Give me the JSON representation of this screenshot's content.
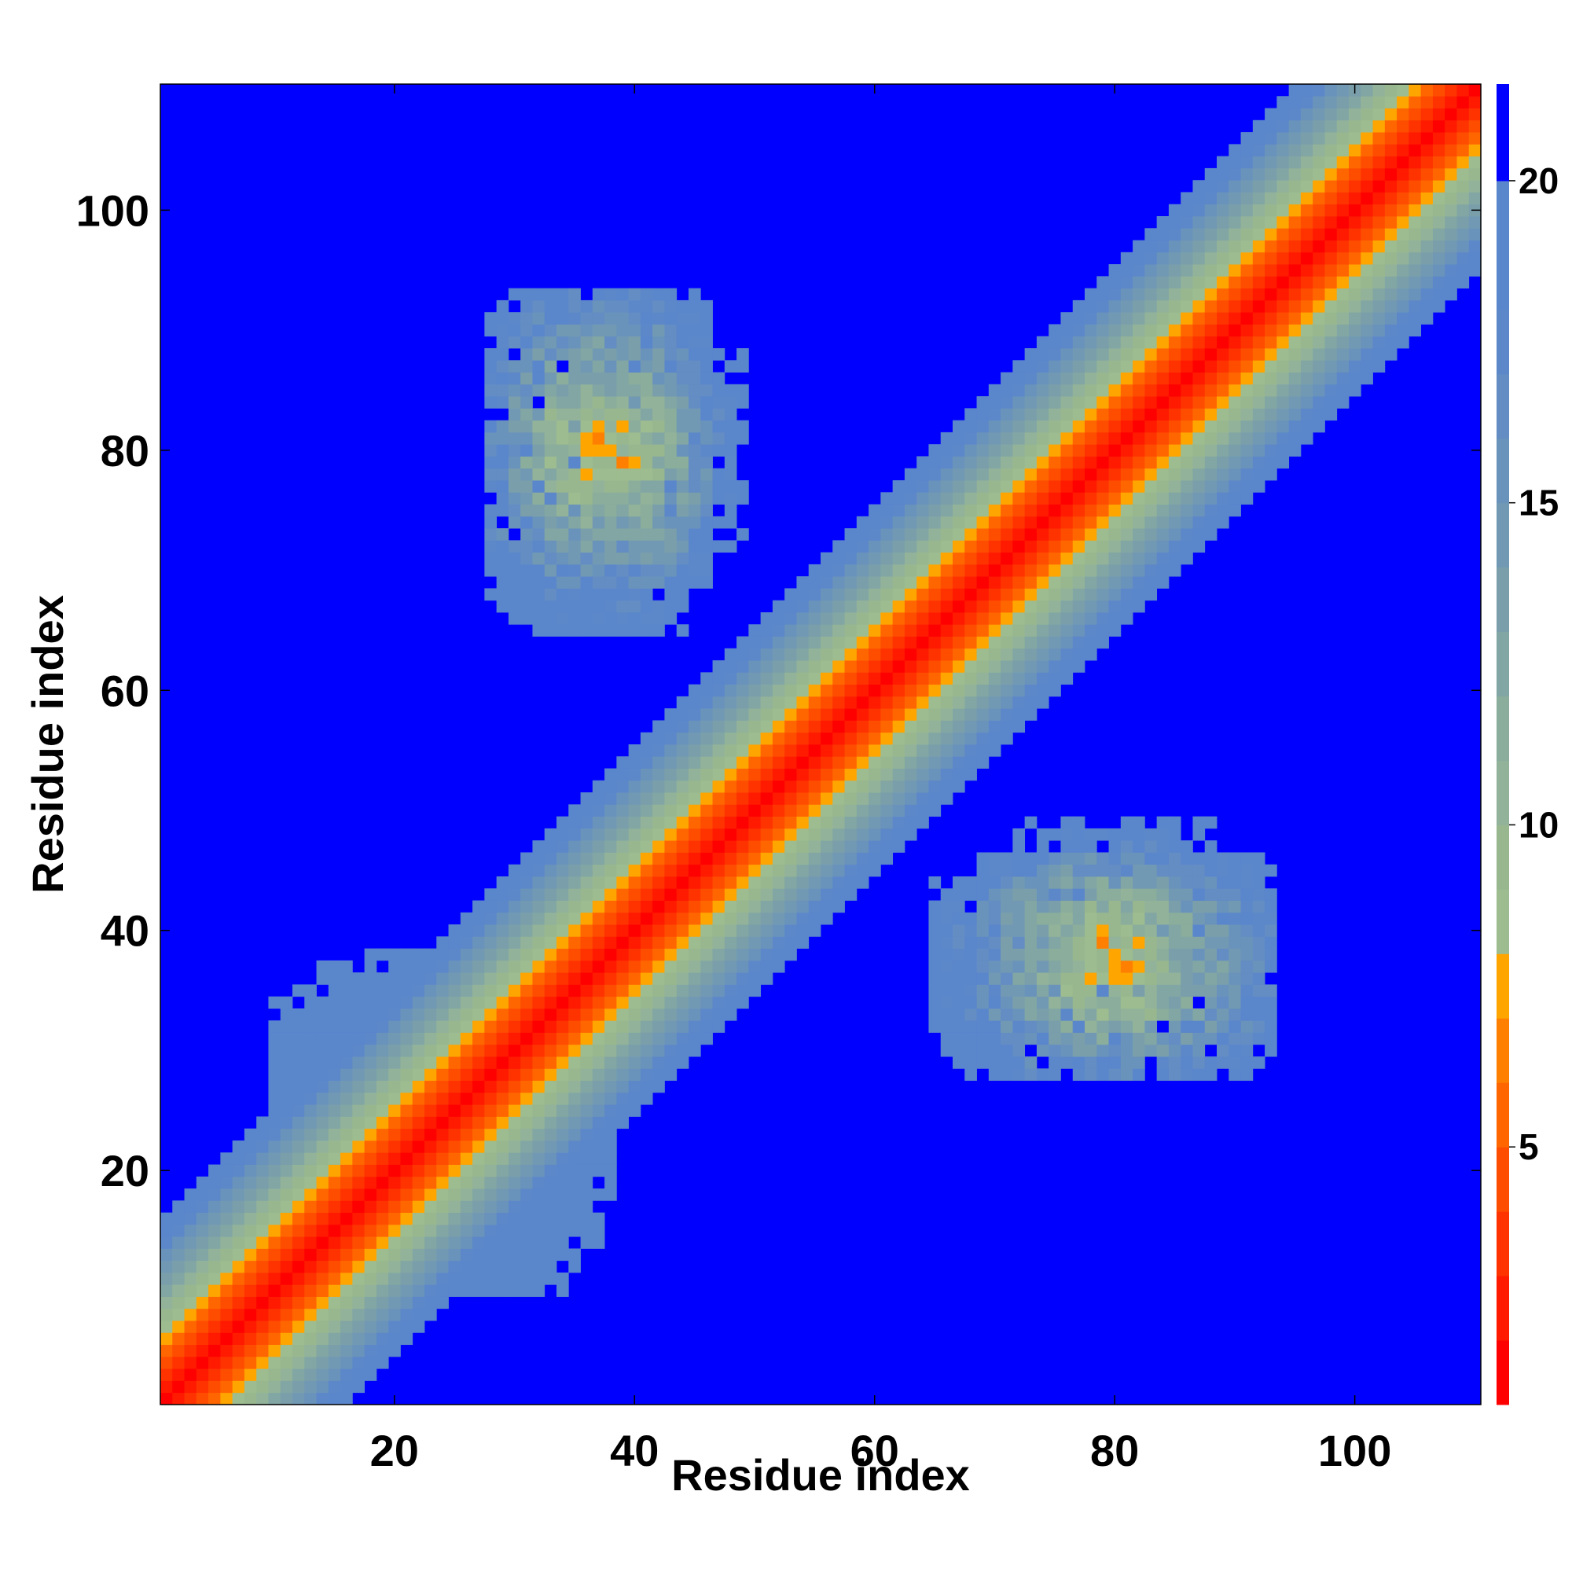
{
  "chart_data": {
    "type": "heatmap",
    "title": "",
    "xlabel": "Residue index",
    "ylabel": "Residue index",
    "n_residues": 110,
    "xlim": [
      0.5,
      110.5
    ],
    "ylim": [
      0.5,
      110.5
    ],
    "x_ticks": [
      20,
      40,
      60,
      80,
      100
    ],
    "y_ticks": [
      20,
      40,
      60,
      80,
      100
    ],
    "colorbar": {
      "range": [
        1,
        21.5
      ],
      "ticks": [
        5,
        10,
        15,
        20
      ],
      "levels": [
        {
          "max": 2,
          "color": "#ff0000"
        },
        {
          "max": 3,
          "color": "#ff1a00"
        },
        {
          "max": 4,
          "color": "#ff3300"
        },
        {
          "max": 5,
          "color": "#ff4d00"
        },
        {
          "max": 6,
          "color": "#ff6600"
        },
        {
          "max": 7,
          "color": "#ff8000"
        },
        {
          "max": 8,
          "color": "#ffa500"
        },
        {
          "max": 9,
          "color": "#9dbc8f"
        },
        {
          "max": 10,
          "color": "#98b78f"
        },
        {
          "max": 11,
          "color": "#92b39a"
        },
        {
          "max": 12,
          "color": "#8aad9c"
        },
        {
          "max": 13,
          "color": "#82a6a3"
        },
        {
          "max": 14,
          "color": "#7a9fab"
        },
        {
          "max": 15,
          "color": "#7299b3"
        },
        {
          "max": 16,
          "color": "#6a93bb"
        },
        {
          "max": 17,
          "color": "#638dc3"
        },
        {
          "max": 18,
          "color": "#5c88c9"
        },
        {
          "max": 19,
          "color": "#5a86cc"
        },
        {
          "max": 20,
          "color": "#5a86cc"
        },
        {
          "max": 21.5,
          "color": "#0000ff"
        }
      ]
    },
    "background_value": 21.5,
    "diagonal_band": {
      "distance_per_residue_offset": 1.25,
      "minimum": 1,
      "cutoff": 20
    },
    "off_diagonal_clusters": [
      {
        "i_range": [
          31,
          49
        ],
        "j_range": [
          65,
          93
        ],
        "center": [
          39,
          80
        ],
        "core_value": 7
      },
      {
        "i_range": [
          65,
          93
        ],
        "j_range": [
          28,
          47
        ],
        "center": [
          80,
          36
        ],
        "core_value": 7
      },
      {
        "i_range": [
          1,
          20
        ],
        "j_range": [
          1,
          20
        ],
        "center": [
          8,
          8
        ],
        "core_value": 7
      },
      {
        "i_range": [
          10,
          38
        ],
        "j_range": [
          10,
          38
        ],
        "center": [
          22,
          22
        ],
        "core_value": 13
      }
    ]
  }
}
